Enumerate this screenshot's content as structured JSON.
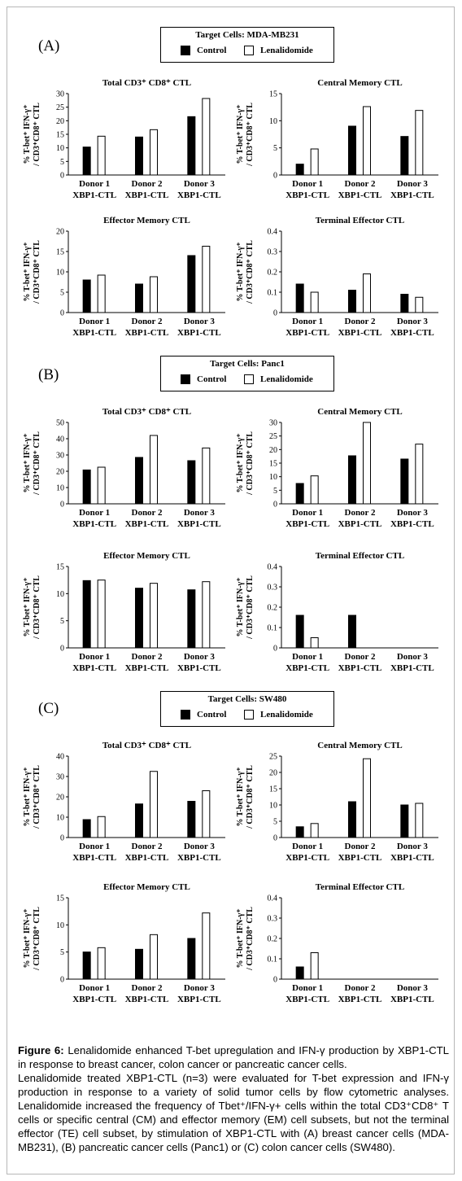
{
  "panels": [
    {
      "letter": "(A)",
      "target_label": "Target Cells:",
      "target_cells": "MDA-MB231"
    },
    {
      "letter": "(B)",
      "target_label": "Target Cells:",
      "target_cells": "Panc1"
    },
    {
      "letter": "(C)",
      "target_label": "Target Cells:",
      "target_cells": "SW480"
    }
  ],
  "legend": {
    "control": "Control",
    "lenalidomide": "Lenalidomide"
  },
  "colors": {
    "control": "#000000",
    "lenalidomide": "#ffffff"
  },
  "y_axis_label": [
    "% T-bet⁺ IFN-γ⁺",
    "/ CD3⁺CD8⁺ CTL"
  ],
  "categories": [
    [
      "Donor 1",
      "XBP1-CTL"
    ],
    [
      "Donor 2",
      "XBP1-CTL"
    ],
    [
      "Donor 3",
      "XBP1-CTL"
    ]
  ],
  "chart_data": [
    {
      "type": "bar",
      "panel": "(A)",
      "title": "Total CD3⁺ CD8⁺ CTL",
      "ylim": [
        0,
        30
      ],
      "yticks": [
        0,
        5,
        10,
        15,
        20,
        25,
        30
      ],
      "series": [
        {
          "name": "Control",
          "values": [
            10.3,
            14.0,
            21.5
          ]
        },
        {
          "name": "Lenalidomide",
          "values": [
            14.3,
            16.7,
            28.2
          ]
        }
      ]
    },
    {
      "type": "bar",
      "panel": "(A)",
      "title": "Central Memory CTL",
      "ylim": [
        0,
        15
      ],
      "yticks": [
        0,
        5,
        10,
        15
      ],
      "series": [
        {
          "name": "Control",
          "values": [
            2.0,
            9.0,
            7.1
          ]
        },
        {
          "name": "Lenalidomide",
          "values": [
            4.8,
            12.6,
            11.9
          ]
        }
      ]
    },
    {
      "type": "bar",
      "panel": "(A)",
      "title": "Effector Memory CTL",
      "ylim": [
        0,
        20
      ],
      "yticks": [
        0,
        5,
        10,
        15,
        20
      ],
      "series": [
        {
          "name": "Control",
          "values": [
            8.0,
            7.0,
            14.0
          ]
        },
        {
          "name": "Lenalidomide",
          "values": [
            9.2,
            8.8,
            16.3
          ]
        }
      ]
    },
    {
      "type": "bar",
      "panel": "(A)",
      "title": "Terminal Effector CTL",
      "ylim": [
        0,
        0.4
      ],
      "yticks": [
        0,
        0.1,
        0.2,
        0.3,
        0.4
      ],
      "series": [
        {
          "name": "Control",
          "values": [
            0.14,
            0.11,
            0.09
          ]
        },
        {
          "name": "Lenalidomide",
          "values": [
            0.1,
            0.19,
            0.075
          ]
        }
      ]
    },
    {
      "type": "bar",
      "panel": "(B)",
      "title": "Total CD3⁺ CD8⁺ CTL",
      "ylim": [
        0,
        50
      ],
      "yticks": [
        0,
        10,
        20,
        30,
        40,
        50
      ],
      "series": [
        {
          "name": "Control",
          "values": [
            20.8,
            28.5,
            26.5
          ]
        },
        {
          "name": "Lenalidomide",
          "values": [
            22.5,
            42.0,
            34.3
          ]
        }
      ]
    },
    {
      "type": "bar",
      "panel": "(B)",
      "title": "Central Memory CTL",
      "ylim": [
        0,
        30
      ],
      "yticks": [
        0,
        5,
        10,
        15,
        20,
        25,
        30
      ],
      "series": [
        {
          "name": "Control",
          "values": [
            7.5,
            17.7,
            16.5
          ]
        },
        {
          "name": "Lenalidomide",
          "values": [
            10.3,
            30.0,
            22.0
          ]
        }
      ]
    },
    {
      "type": "bar",
      "panel": "(B)",
      "title": "Effector Memory CTL",
      "ylim": [
        0,
        15
      ],
      "yticks": [
        0,
        5,
        10,
        15
      ],
      "series": [
        {
          "name": "Control",
          "values": [
            12.4,
            11.0,
            10.7
          ]
        },
        {
          "name": "Lenalidomide",
          "values": [
            12.5,
            11.9,
            12.2
          ]
        }
      ]
    },
    {
      "type": "bar",
      "panel": "(B)",
      "title": "Terminal Effector CTL",
      "ylim": [
        0,
        0.4
      ],
      "yticks": [
        0,
        0.1,
        0.2,
        0.3,
        0.4
      ],
      "series": [
        {
          "name": "Control",
          "values": [
            0.16,
            0.16,
            0
          ]
        },
        {
          "name": "Lenalidomide",
          "values": [
            0.05,
            0,
            0
          ]
        }
      ]
    },
    {
      "type": "bar",
      "panel": "(C)",
      "title": "Total CD3⁺ CD8⁺ CTL",
      "ylim": [
        0,
        40
      ],
      "yticks": [
        0,
        10,
        20,
        30,
        40
      ],
      "series": [
        {
          "name": "Control",
          "values": [
            8.8,
            16.5,
            17.8
          ]
        },
        {
          "name": "Lenalidomide",
          "values": [
            10.3,
            32.5,
            23.0
          ]
        }
      ]
    },
    {
      "type": "bar",
      "panel": "(C)",
      "title": "Central Memory CTL",
      "ylim": [
        0,
        25
      ],
      "yticks": [
        0,
        5,
        10,
        15,
        20,
        25
      ],
      "series": [
        {
          "name": "Control",
          "values": [
            3.3,
            11.0,
            10.0
          ]
        },
        {
          "name": "Lenalidomide",
          "values": [
            4.3,
            24.2,
            10.5
          ]
        }
      ]
    },
    {
      "type": "bar",
      "panel": "(C)",
      "title": "Effector Memory CTL",
      "ylim": [
        0,
        15
      ],
      "yticks": [
        0,
        5,
        10,
        15
      ],
      "series": [
        {
          "name": "Control",
          "values": [
            5.0,
            5.5,
            7.5
          ]
        },
        {
          "name": "Lenalidomide",
          "values": [
            5.8,
            8.2,
            12.2
          ]
        }
      ]
    },
    {
      "type": "bar",
      "panel": "(C)",
      "title": "Terminal Effector CTL",
      "ylim": [
        0,
        0.4
      ],
      "yticks": [
        0,
        0.1,
        0.2,
        0.3,
        0.4
      ],
      "series": [
        {
          "name": "Control",
          "values": [
            0.06,
            0,
            0
          ]
        },
        {
          "name": "Lenalidomide",
          "values": [
            0.13,
            0,
            0
          ]
        }
      ]
    }
  ],
  "caption": {
    "label": "Figure 6:",
    "title_text": "Lenalidomide enhanced T-bet upregulation and IFN-γ production by XBP1-CTL in response to breast cancer, colon cancer or pancreatic cancer cells.",
    "body": "Lenalidomide treated XBP1-CTL (n=3) were evaluated for T-bet expression and IFN-γ production in response to a variety of solid tumor cells by flow cytometric analyses.   Lenalidomide increased the frequency of Tbet⁺/IFN-γ+ cells within the total CD3⁺CD8⁺ T cells or specific central (CM) and effector memory (EM) cell subsets, but not the terminal effector (TE) cell subset, by stimulation of XBP1-CTL with (A) breast cancer cells (MDA-MB231), (B) pancreatic cancer cells (Panc1) or (C) colon cancer cells (SW480)."
  }
}
